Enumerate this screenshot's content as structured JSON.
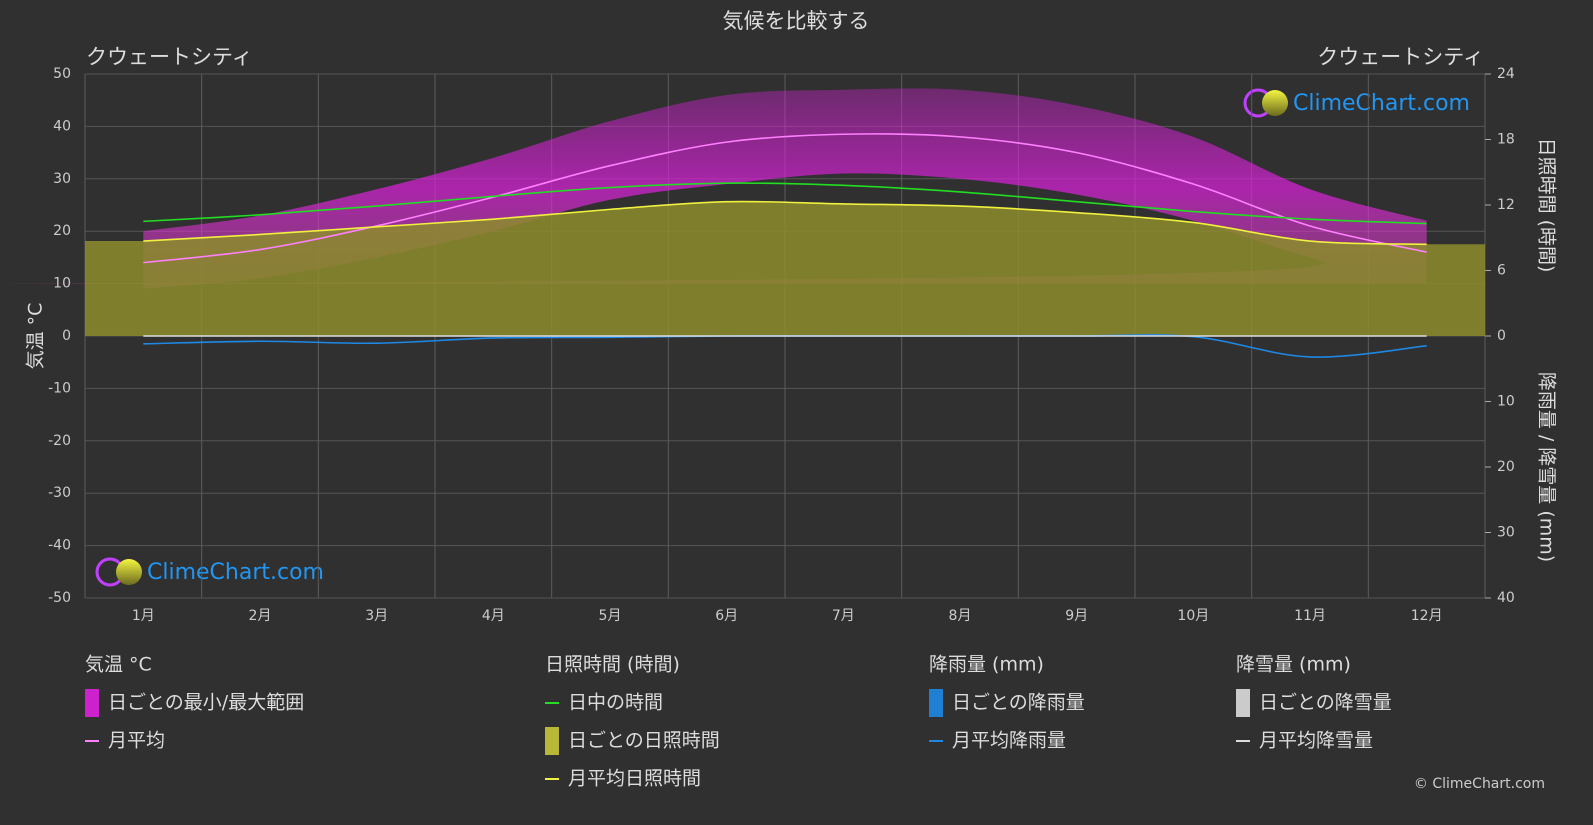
{
  "chart_data": {
    "type": "climate",
    "title": "気候を比較する",
    "subtitle_left": "クウェートシティ",
    "subtitle_right": "クウェートシティ",
    "y_label": "気温 °C",
    "y2_label": "日照時間 (時間)",
    "y3_label": "降雨量 / 降雪量 (mm)",
    "watermark": "ClimeChart.com",
    "copyright": "© ClimeChart.com",
    "categories": [
      "1月",
      "2月",
      "3月",
      "4月",
      "5月",
      "6月",
      "7月",
      "8月",
      "9月",
      "10月",
      "11月",
      "12月"
    ],
    "ylim": [
      -50,
      50
    ],
    "yticks": [
      -50,
      -40,
      -30,
      -20,
      -10,
      0,
      10,
      20,
      30,
      40,
      50
    ],
    "y2lim": [
      0,
      24
    ],
    "y2ticks": [
      0,
      6,
      12,
      18,
      24
    ],
    "y3lim": [
      0,
      40
    ],
    "y3ticks": [
      10,
      20,
      30,
      40
    ],
    "grid": true,
    "series": [
      {
        "name": "日ごとの最小/最大範囲",
        "color": "#e020e0",
        "values": [
          20,
          23,
          28,
          34,
          41,
          46,
          47,
          47,
          44,
          38,
          28,
          22
        ],
        "min": [
          9,
          11,
          15,
          20,
          26,
          29,
          31,
          30,
          27,
          22,
          15,
          10
        ]
      },
      {
        "name": "日ごとの日照時間",
        "color": "#8c8c2c",
        "values": [
          8.7,
          9.3,
          10,
          10.7,
          11.6,
          12.3,
          12.1,
          11.9,
          11.3,
          10.4,
          8.7,
          8.4
        ],
        "axis": "y2"
      },
      {
        "name": "月平均",
        "color": "#ff80ff",
        "values": [
          14,
          16.5,
          21,
          26.5,
          32.5,
          37,
          38.5,
          38,
          35,
          29,
          21,
          16
        ]
      },
      {
        "name": "日中の時間",
        "color": "#22dd22",
        "values": [
          10.5,
          11.1,
          11.9,
          12.8,
          13.6,
          14.0,
          13.8,
          13.2,
          12.3,
          11.4,
          10.7,
          10.3
        ],
        "axis": "y2"
      },
      {
        "name": "月平均日照時間",
        "color": "#f0f040",
        "values": [
          8.7,
          9.3,
          10,
          10.7,
          11.6,
          12.3,
          12.1,
          11.9,
          11.3,
          10.4,
          8.7,
          8.4
        ],
        "axis": "y2"
      },
      {
        "name": "月平均降雨量",
        "color": "#1e88e5",
        "values": [
          1.2,
          0.8,
          1.1,
          0.3,
          0.2,
          0,
          0,
          0,
          0,
          0.1,
          3.2,
          1.5
        ],
        "axis": "y3"
      },
      {
        "name": "月平均降雪量",
        "color": "#dddddd",
        "values": [
          0,
          0,
          0,
          0,
          0,
          0,
          0,
          0,
          0,
          0,
          0,
          0
        ],
        "axis": "y3"
      }
    ],
    "legend": [
      {
        "title": "気温 °C",
        "items": [
          {
            "label": "日ごとの最小/最大範囲",
            "color": "#e020e0",
            "style": "box"
          },
          {
            "label": "月平均",
            "color": "#ff80ff",
            "style": "line"
          }
        ]
      },
      {
        "title": "日照時間 (時間)",
        "items": [
          {
            "label": "日中の時間",
            "color": "#22dd22",
            "style": "line"
          },
          {
            "label": "日ごとの日照時間",
            "color": "#c8c83a",
            "style": "box"
          },
          {
            "label": "月平均日照時間",
            "color": "#f0f040",
            "style": "line"
          }
        ]
      },
      {
        "title": "降雨量 (mm)",
        "items": [
          {
            "label": "日ごとの降雨量",
            "color": "#1e88e5",
            "style": "box"
          },
          {
            "label": "月平均降雨量",
            "color": "#1e88e5",
            "style": "line"
          }
        ]
      },
      {
        "title": "降雪量 (mm)",
        "items": [
          {
            "label": "日ごとの降雪量",
            "color": "#dddddd",
            "style": "box"
          },
          {
            "label": "月平均降雪量",
            "color": "#dddddd",
            "style": "line"
          }
        ]
      }
    ]
  }
}
